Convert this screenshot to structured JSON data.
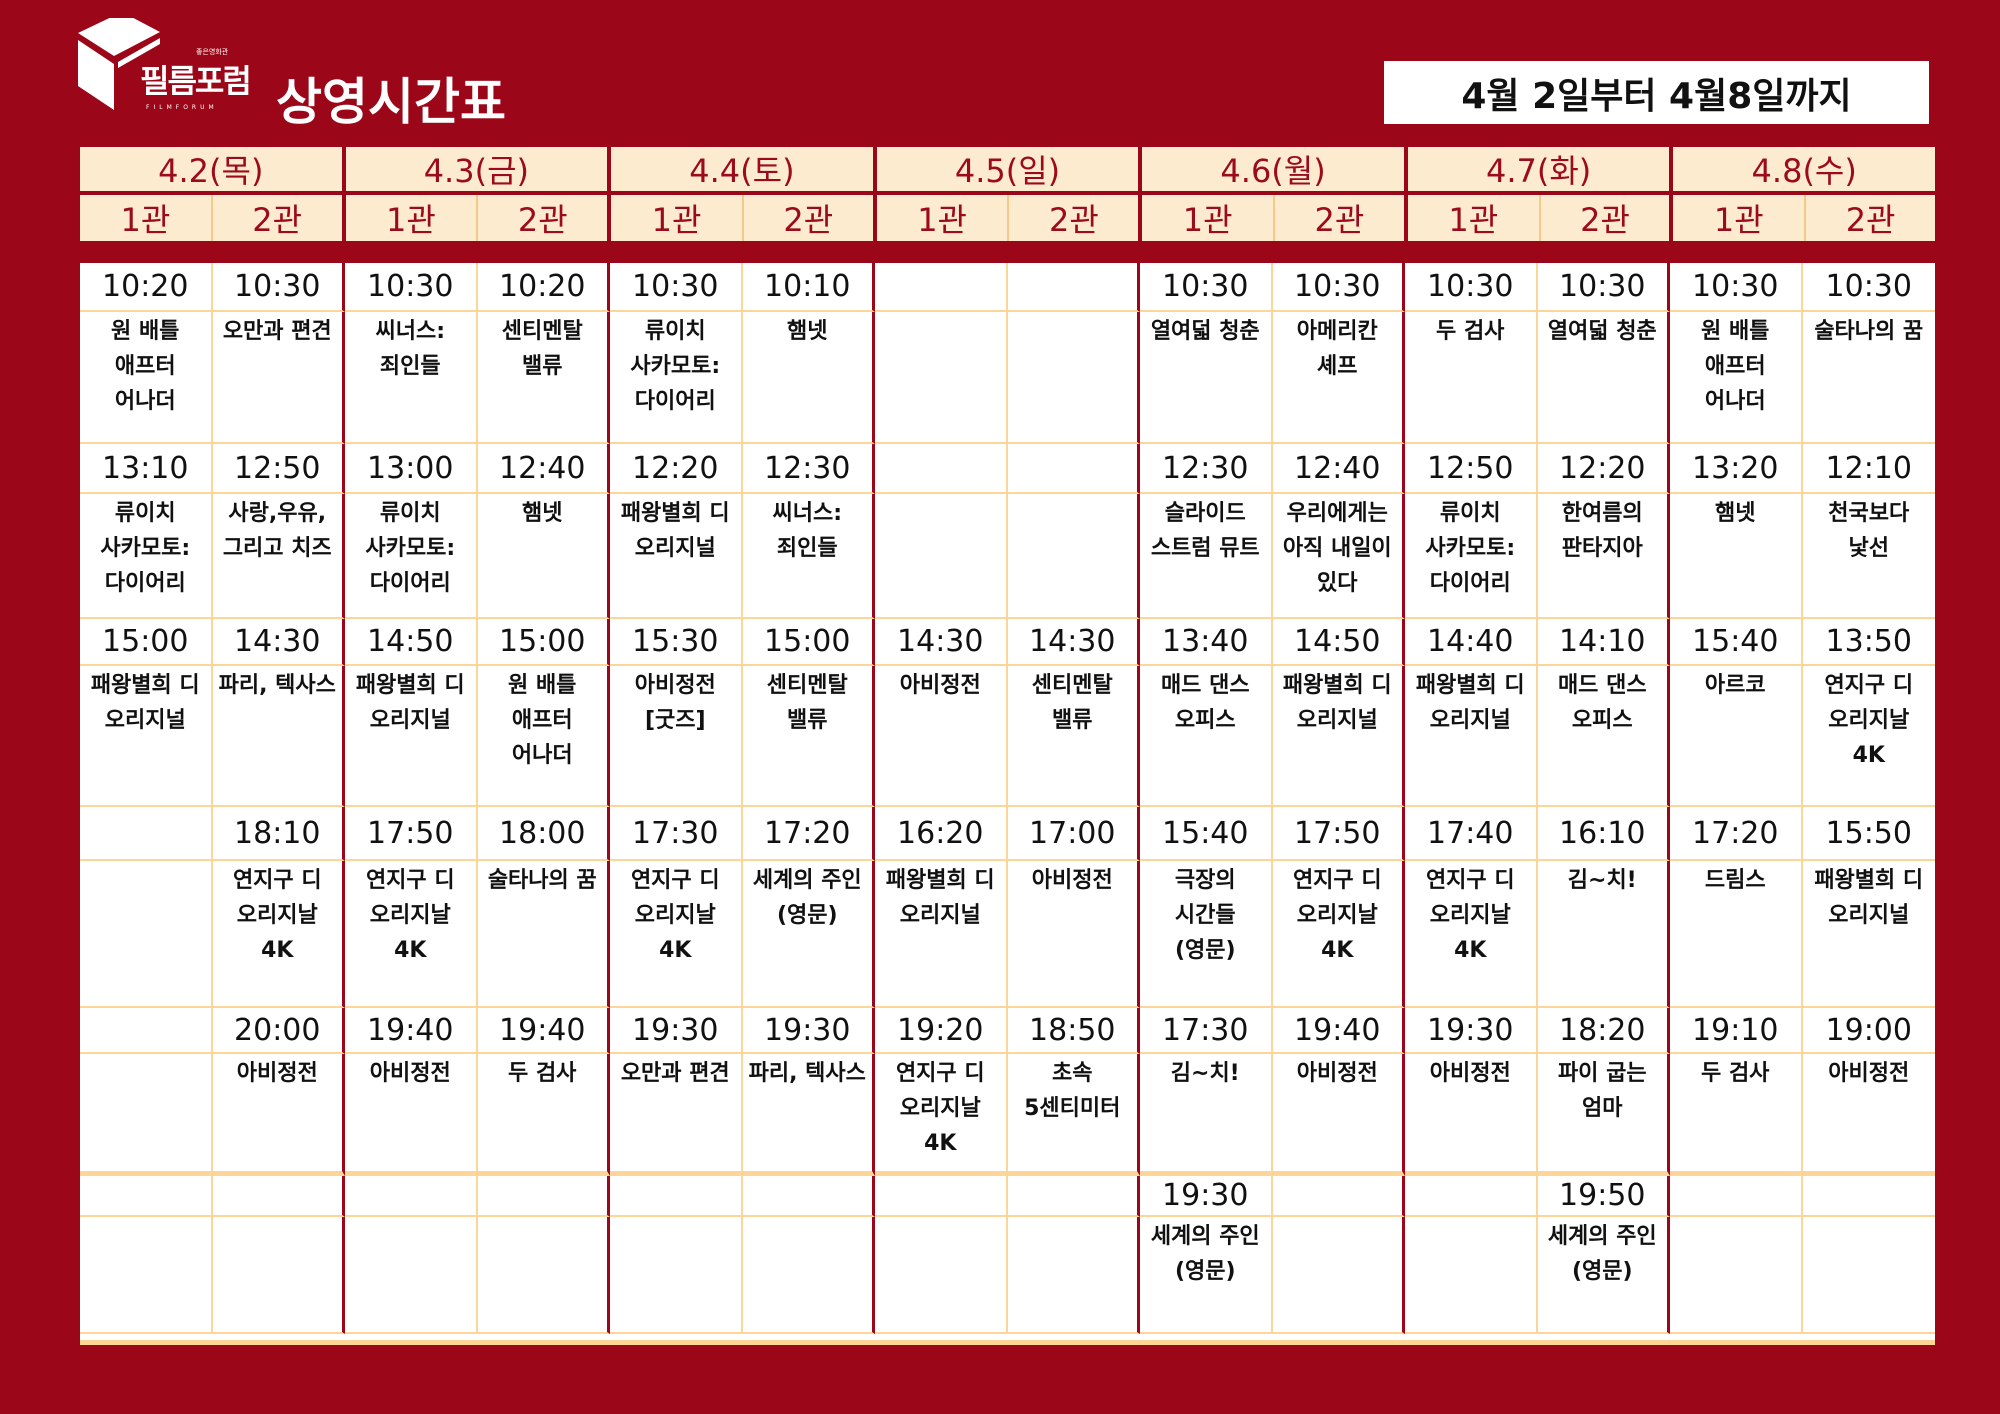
{
  "header": {
    "logo_name": "필름포럼",
    "logo_tagline": "좋은영화관",
    "logo_en": "FILMFORUM",
    "title": "상영시간표",
    "date_range": "4월 2일부터 4월8일까지"
  },
  "colors": {
    "background": "#9b0718",
    "header_bg": "#fdebd0",
    "grid_line": "#fdd596",
    "header_text": "#9b0b1b"
  },
  "days": [
    {
      "label": "4.2(목)",
      "halls": [
        {
          "label": "1관",
          "shows": [
            {
              "time": "10:20",
              "title": "원 배틀 애프터 어나더"
            },
            {
              "time": "13:10",
              "title": "류이치 사카모토: 다이어리"
            },
            {
              "time": "15:00",
              "title": "패왕별희 디 오리지널"
            },
            {
              "time": "",
              "title": ""
            },
            {
              "time": "",
              "title": ""
            },
            {
              "time": "",
              "title": ""
            }
          ]
        },
        {
          "label": "2관",
          "shows": [
            {
              "time": "10:30",
              "title": "오만과 편견"
            },
            {
              "time": "12:50",
              "title": "사랑,우유, 그리고 치즈"
            },
            {
              "time": "14:30",
              "title": "파리, 텍사스"
            },
            {
              "time": "18:10",
              "title": "연지구 디 오리지날 4K"
            },
            {
              "time": "20:00",
              "title": "아비정전"
            },
            {
              "time": "",
              "title": ""
            }
          ]
        }
      ]
    },
    {
      "label": "4.3(금)",
      "halls": [
        {
          "label": "1관",
          "shows": [
            {
              "time": "10:30",
              "title": "씨너스: 죄인들"
            },
            {
              "time": "13:00",
              "title": "류이치 사카모토: 다이어리"
            },
            {
              "time": "14:50",
              "title": "패왕별희 디 오리지널"
            },
            {
              "time": "17:50",
              "title": "연지구 디 오리지날 4K"
            },
            {
              "time": "19:40",
              "title": "아비정전"
            },
            {
              "time": "",
              "title": ""
            }
          ]
        },
        {
          "label": "2관",
          "shows": [
            {
              "time": "10:20",
              "title": "센티멘탈 밸류"
            },
            {
              "time": "12:40",
              "title": "햄넷"
            },
            {
              "time": "15:00",
              "title": "원 배틀 애프터 어나더"
            },
            {
              "time": "18:00",
              "title": "술타나의 꿈"
            },
            {
              "time": "19:40",
              "title": "두 검사"
            },
            {
              "time": "",
              "title": ""
            }
          ]
        }
      ]
    },
    {
      "label": "4.4(토)",
      "halls": [
        {
          "label": "1관",
          "shows": [
            {
              "time": "10:30",
              "title": "류이치 사카모토: 다이어리"
            },
            {
              "time": "12:20",
              "title": "패왕별희 디 오리지널"
            },
            {
              "time": "15:30",
              "title": "아비정전 [굿즈]"
            },
            {
              "time": "17:30",
              "title": "연지구 디 오리지날 4K"
            },
            {
              "time": "19:30",
              "title": "오만과 편견"
            },
            {
              "time": "",
              "title": ""
            }
          ]
        },
        {
          "label": "2관",
          "shows": [
            {
              "time": "10:10",
              "title": "햄넷"
            },
            {
              "time": "12:30",
              "title": "씨너스: 죄인들"
            },
            {
              "time": "15:00",
              "title": "센티멘탈 밸류"
            },
            {
              "time": "17:20",
              "title": "세계의 주인 (영문)"
            },
            {
              "time": "19:30",
              "title": "파리, 텍사스"
            },
            {
              "time": "",
              "title": ""
            }
          ]
        }
      ]
    },
    {
      "label": "4.5(일)",
      "halls": [
        {
          "label": "1관",
          "shows": [
            {
              "time": "",
              "title": ""
            },
            {
              "time": "",
              "title": ""
            },
            {
              "time": "14:30",
              "title": "아비정전"
            },
            {
              "time": "16:20",
              "title": "패왕별희 디 오리지널"
            },
            {
              "time": "19:20",
              "title": "연지구 디 오리지날 4K"
            },
            {
              "time": "",
              "title": ""
            }
          ]
        },
        {
          "label": "2관",
          "shows": [
            {
              "time": "",
              "title": ""
            },
            {
              "time": "",
              "title": ""
            },
            {
              "time": "14:30",
              "title": "센티멘탈 밸류"
            },
            {
              "time": "17:00",
              "title": "아비정전"
            },
            {
              "time": "18:50",
              "title": "초속 5센티미터"
            },
            {
              "time": "",
              "title": ""
            }
          ]
        }
      ]
    },
    {
      "label": "4.6(월)",
      "halls": [
        {
          "label": "1관",
          "shows": [
            {
              "time": "10:30",
              "title": "열여덟 청춘"
            },
            {
              "time": "12:30",
              "title": "슬라이드 스트럼 뮤트"
            },
            {
              "time": "13:40",
              "title": "매드 댄스 오피스"
            },
            {
              "time": "15:40",
              "title": "극장의 시간들 (영문)"
            },
            {
              "time": "17:30",
              "title": "김~치!"
            },
            {
              "time": "19:30",
              "title": "세계의 주인 (영문)"
            }
          ]
        },
        {
          "label": "2관",
          "shows": [
            {
              "time": "10:30",
              "title": "아메리칸 셰프"
            },
            {
              "time": "12:40",
              "title": "우리에게는 아직 내일이 있다"
            },
            {
              "time": "14:50",
              "title": "패왕별희 디 오리지널"
            },
            {
              "time": "17:50",
              "title": "연지구 디 오리지날 4K"
            },
            {
              "time": "19:40",
              "title": "아비정전"
            },
            {
              "time": "",
              "title": ""
            }
          ]
        }
      ]
    },
    {
      "label": "4.7(화)",
      "halls": [
        {
          "label": "1관",
          "shows": [
            {
              "time": "10:30",
              "title": "두 검사"
            },
            {
              "time": "12:50",
              "title": "류이치 사카모토: 다이어리"
            },
            {
              "time": "14:40",
              "title": "패왕별희 디 오리지널"
            },
            {
              "time": "17:40",
              "title": "연지구 디 오리지날 4K"
            },
            {
              "time": "19:30",
              "title": "아비정전"
            },
            {
              "time": "",
              "title": ""
            }
          ]
        },
        {
          "label": "2관",
          "shows": [
            {
              "time": "10:30",
              "title": "열여덟 청춘"
            },
            {
              "time": "12:20",
              "title": "한여름의 판타지아"
            },
            {
              "time": "14:10",
              "title": "매드 댄스 오피스"
            },
            {
              "time": "16:10",
              "title": "김~치!"
            },
            {
              "time": "18:20",
              "title": "파이 굽는 엄마"
            },
            {
              "time": "19:50",
              "title": "세계의 주인 (영문)"
            }
          ]
        }
      ]
    },
    {
      "label": "4.8(수)",
      "halls": [
        {
          "label": "1관",
          "shows": [
            {
              "time": "10:30",
              "title": "원 배틀 애프터 어나더"
            },
            {
              "time": "13:20",
              "title": "햄넷"
            },
            {
              "time": "15:40",
              "title": "아르코"
            },
            {
              "time": "17:20",
              "title": "드림스"
            },
            {
              "time": "19:10",
              "title": "두 검사"
            },
            {
              "time": "",
              "title": ""
            }
          ]
        },
        {
          "label": "2관",
          "shows": [
            {
              "time": "10:30",
              "title": "술타나의 꿈"
            },
            {
              "time": "12:10",
              "title": "천국보다 낯선"
            },
            {
              "time": "13:50",
              "title": "연지구 디 오리지날 4K"
            },
            {
              "time": "15:50",
              "title": "패왕별희 디 오리지널"
            },
            {
              "time": "19:00",
              "title": "아비정전"
            },
            {
              "time": "",
              "title": ""
            }
          ]
        }
      ]
    }
  ]
}
